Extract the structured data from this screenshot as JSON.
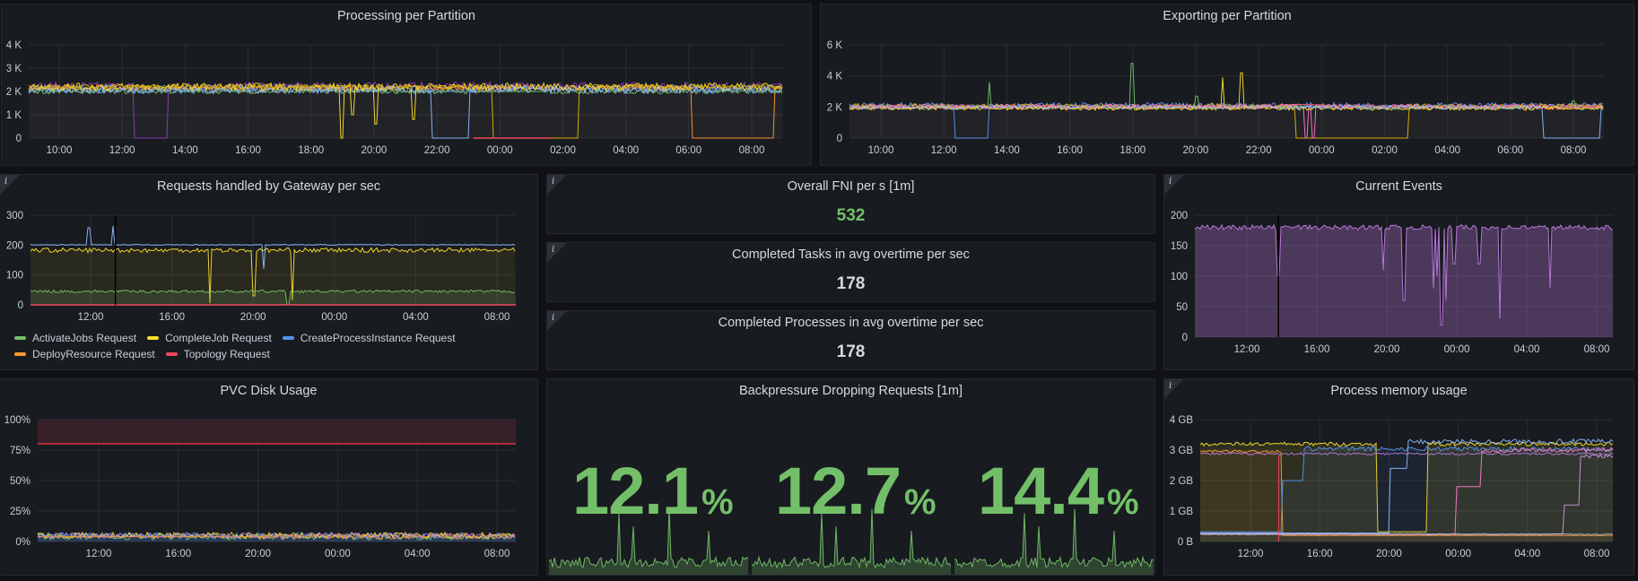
{
  "panels": {
    "processing": {
      "title": "Processing per Partition",
      "yticks": [
        "4 K",
        "3 K",
        "2 K",
        "1 K",
        "0"
      ],
      "xticks": [
        "10:00",
        "12:00",
        "14:00",
        "16:00",
        "18:00",
        "20:00",
        "22:00",
        "00:00",
        "02:00",
        "04:00",
        "06:00",
        "08:00"
      ]
    },
    "exporting": {
      "title": "Exporting per Partition",
      "yticks": [
        "6 K",
        "4 K",
        "2 K",
        "0"
      ],
      "xticks": [
        "10:00",
        "12:00",
        "14:00",
        "16:00",
        "18:00",
        "20:00",
        "22:00",
        "00:00",
        "02:00",
        "04:00",
        "06:00",
        "08:00"
      ]
    },
    "gateway": {
      "title": "Requests handled by Gateway per sec",
      "info": "i",
      "yticks": [
        "300",
        "200",
        "100",
        "0"
      ],
      "xticks": [
        "12:00",
        "16:00",
        "20:00",
        "00:00",
        "04:00",
        "08:00"
      ],
      "legend": [
        {
          "label": "ActivateJobs Request",
          "color": "#73bf69"
        },
        {
          "label": "CompleteJob Request",
          "color": "#fade2a"
        },
        {
          "label": "CreateProcessInstance Request",
          "color": "#5794f2"
        },
        {
          "label": "DeployResource Request",
          "color": "#ff9830"
        },
        {
          "label": "Topology Request",
          "color": "#f2495c"
        }
      ]
    },
    "fni": {
      "title": "Overall FNI per s [1m]",
      "info": "i",
      "value": "532",
      "color": "#73bf69"
    },
    "tasks": {
      "title": "Completed Tasks in avg overtime per sec",
      "info": "i",
      "value": "178",
      "color": "#d8d9da"
    },
    "processes": {
      "title": "Completed Processes in avg overtime per sec",
      "info": "i",
      "value": "178",
      "color": "#d8d9da"
    },
    "events": {
      "title": "Current Events",
      "info": "i",
      "yticks": [
        "200",
        "150",
        "100",
        "50",
        "0"
      ],
      "xticks": [
        "12:00",
        "16:00",
        "20:00",
        "00:00",
        "04:00",
        "08:00"
      ]
    },
    "pvc": {
      "title": "PVC Disk Usage",
      "yticks": [
        "100%",
        "75%",
        "50%",
        "25%",
        "0%"
      ],
      "xticks": [
        "12:00",
        "16:00",
        "20:00",
        "00:00",
        "04:00",
        "08:00"
      ]
    },
    "backpressure": {
      "title": "Backpressure Dropping Requests [1m]",
      "values": [
        {
          "value": "12.1",
          "unit": "%"
        },
        {
          "value": "12.7",
          "unit": "%"
        },
        {
          "value": "14.4",
          "unit": "%"
        }
      ],
      "color": "#73bf69"
    },
    "memory": {
      "title": "Process memory usage",
      "info": "i",
      "yticks": [
        "4 GB",
        "3 GB",
        "2 GB",
        "1 GB",
        "0 B"
      ],
      "xticks": [
        "12:00",
        "16:00",
        "20:00",
        "00:00",
        "04:00",
        "08:00"
      ]
    }
  }
}
